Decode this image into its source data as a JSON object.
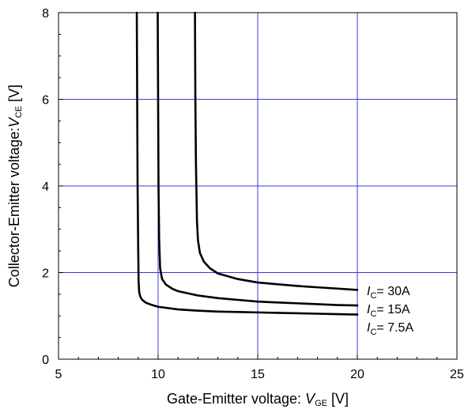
{
  "chart_data": {
    "type": "line",
    "xlabel": {
      "prefix": "Gate-Emitter voltage: ",
      "var": "V",
      "sub": "GE",
      "suffix": " [V]"
    },
    "ylabel": {
      "prefix": "Collector-Emitter voltage:",
      "var": "V",
      "sub": "CE",
      "suffix": " [V]"
    },
    "xlim": [
      5,
      25
    ],
    "ylim": [
      0,
      8
    ],
    "xticks": [
      "5",
      "10",
      "15",
      "20",
      "25"
    ],
    "yticks": [
      "0",
      "2",
      "4",
      "6",
      "8"
    ],
    "grid": true,
    "grid_color": "#3a3ad8",
    "line_color": "#000000",
    "series": [
      {
        "name": "IC= 30A",
        "label": {
          "var": "I",
          "sub": "C",
          "text": "= 30A"
        },
        "x": [
          11.85,
          11.87,
          11.9,
          11.95,
          12.0,
          12.1,
          12.3,
          12.6,
          13.0,
          14.0,
          15.0,
          16.0,
          17.0,
          18.0,
          19.0,
          20.0
        ],
        "y": [
          8.0,
          6.0,
          4.5,
          3.2,
          2.75,
          2.45,
          2.25,
          2.1,
          1.98,
          1.85,
          1.77,
          1.73,
          1.69,
          1.66,
          1.63,
          1.6
        ]
      },
      {
        "name": "IC= 15A",
        "label": {
          "var": "I",
          "sub": "C",
          "text": "= 15A"
        },
        "x": [
          9.98,
          10.0,
          10.02,
          10.05,
          10.1,
          10.2,
          10.4,
          10.7,
          11.0,
          12.0,
          13.0,
          14.0,
          15.0,
          16.0,
          17.0,
          18.0,
          19.0,
          20.0
        ],
        "y": [
          8.0,
          6.0,
          4.0,
          2.8,
          2.1,
          1.85,
          1.72,
          1.63,
          1.57,
          1.47,
          1.41,
          1.37,
          1.33,
          1.31,
          1.29,
          1.27,
          1.25,
          1.24
        ]
      },
      {
        "name": "IC= 7.5A",
        "label": {
          "var": "I",
          "sub": "C",
          "text": "= 7.5A"
        },
        "x": [
          8.93,
          8.95,
          8.97,
          9.0,
          9.02,
          9.05,
          9.1,
          9.2,
          9.4,
          9.7,
          10.0,
          11.0,
          12.0,
          13.0,
          14.0,
          15.0,
          16.0,
          17.0,
          18.0,
          19.0,
          20.0
        ],
        "y": [
          8.0,
          6.0,
          4.0,
          2.6,
          1.8,
          1.55,
          1.45,
          1.37,
          1.3,
          1.25,
          1.21,
          1.15,
          1.12,
          1.1,
          1.09,
          1.08,
          1.07,
          1.06,
          1.05,
          1.04,
          1.03
        ]
      }
    ]
  }
}
